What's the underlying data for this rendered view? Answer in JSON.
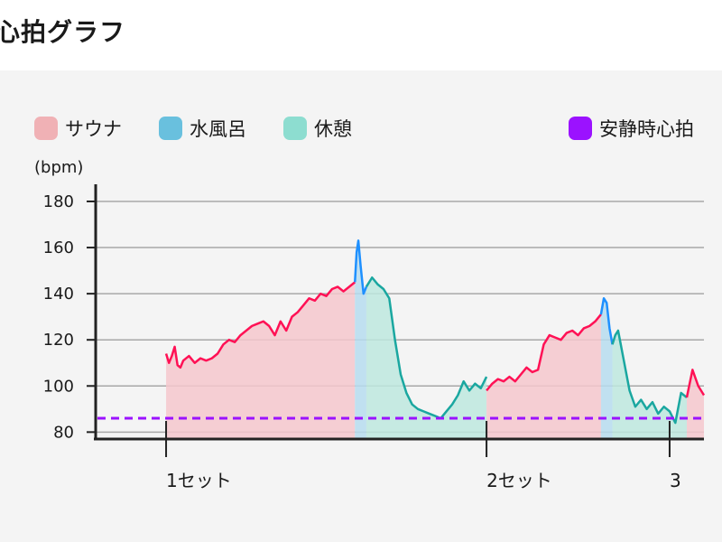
{
  "title": "心拍グラフ",
  "legend": {
    "sauna": {
      "label": "サウナ",
      "color": "#f0b1b5"
    },
    "cold": {
      "label": "水風呂",
      "color": "#69c0de"
    },
    "rest": {
      "label": "休憩",
      "color": "#8dddd0"
    },
    "resting": {
      "label": "安静時心拍",
      "color": "#9b12ff"
    }
  },
  "chart_data": {
    "type": "line",
    "ylabel": "(bpm)",
    "ylim": [
      77,
      189
    ],
    "yticks": [
      80,
      100,
      120,
      140,
      160,
      180
    ],
    "xlim": [
      0,
      100
    ],
    "xticks": [
      {
        "label": "1セット",
        "x": 6
      },
      {
        "label": "2セット",
        "x": 62
      },
      {
        "label": "3",
        "x": 94
      }
    ],
    "resting_hr": 86,
    "grid": true,
    "legend_position": "top",
    "series": [
      {
        "name": "サウナ",
        "color": "#ff1155",
        "fill": "#f5c7cc",
        "x": [
          6,
          6.5,
          7,
          7.5,
          8,
          8.5,
          9,
          10,
          11,
          12,
          13,
          14,
          15,
          16,
          17,
          18,
          19,
          20,
          21,
          22,
          23,
          24,
          25,
          26,
          27,
          28,
          29,
          30,
          31,
          32,
          33,
          34,
          35,
          36,
          37,
          38,
          39
        ],
        "y": [
          114,
          110,
          113,
          117,
          109,
          108,
          111,
          113,
          110,
          112,
          111,
          112,
          114,
          118,
          120,
          119,
          122,
          124,
          126,
          127,
          128,
          126,
          122,
          128,
          124,
          130,
          132,
          135,
          138,
          137,
          140,
          139,
          142,
          143,
          141,
          143,
          145
        ]
      },
      {
        "name": "水風呂",
        "color": "#1e90ff",
        "fill": "#b6dcef",
        "x": [
          39,
          39.3,
          39.6,
          40,
          40.5,
          41
        ],
        "y": [
          145,
          158,
          163,
          152,
          140,
          143
        ]
      },
      {
        "name": "休憩",
        "color": "#1aa7a0",
        "fill": "#bde8de",
        "x": [
          41,
          42,
          43,
          44,
          45,
          46,
          47,
          48,
          49,
          50,
          51,
          52,
          53,
          54,
          55,
          56,
          57,
          58,
          59,
          60,
          61,
          62
        ],
        "y": [
          143,
          147,
          144,
          142,
          138,
          120,
          105,
          97,
          92,
          90,
          89,
          88,
          87,
          86,
          89,
          92,
          96,
          102,
          98,
          101,
          99,
          104
        ]
      },
      {
        "name": "サウナ",
        "color": "#ff1155",
        "fill": "#f5c7cc",
        "x": [
          62,
          63,
          64,
          65,
          66,
          67,
          68,
          69,
          70,
          71,
          72,
          73,
          74,
          75,
          76,
          77,
          78,
          79,
          80,
          81,
          82
        ],
        "y": [
          98,
          101,
          103,
          102,
          104,
          102,
          105,
          108,
          106,
          107,
          118,
          122,
          121,
          120,
          123,
          124,
          122,
          125,
          126,
          128,
          131
        ]
      },
      {
        "name": "水風呂",
        "color": "#1e90ff",
        "fill": "#b6dcef",
        "x": [
          82,
          82.5,
          83,
          83.5,
          84
        ],
        "y": [
          131,
          138,
          136,
          125,
          118
        ]
      },
      {
        "name": "休憩",
        "color": "#1aa7a0",
        "fill": "#bde8de",
        "x": [
          84,
          84.5,
          85,
          86,
          87,
          88,
          89,
          90,
          91,
          92,
          93,
          94,
          95,
          96,
          97
        ],
        "y": [
          118,
          122,
          124,
          111,
          98,
          91,
          94,
          90,
          93,
          88,
          91,
          89,
          84,
          97,
          95
        ]
      },
      {
        "name": "サウナ",
        "color": "#ff1155",
        "fill": "#f5c7cc",
        "x": [
          97,
          98,
          99,
          100
        ],
        "y": [
          95,
          107,
          100,
          96
        ]
      }
    ]
  }
}
